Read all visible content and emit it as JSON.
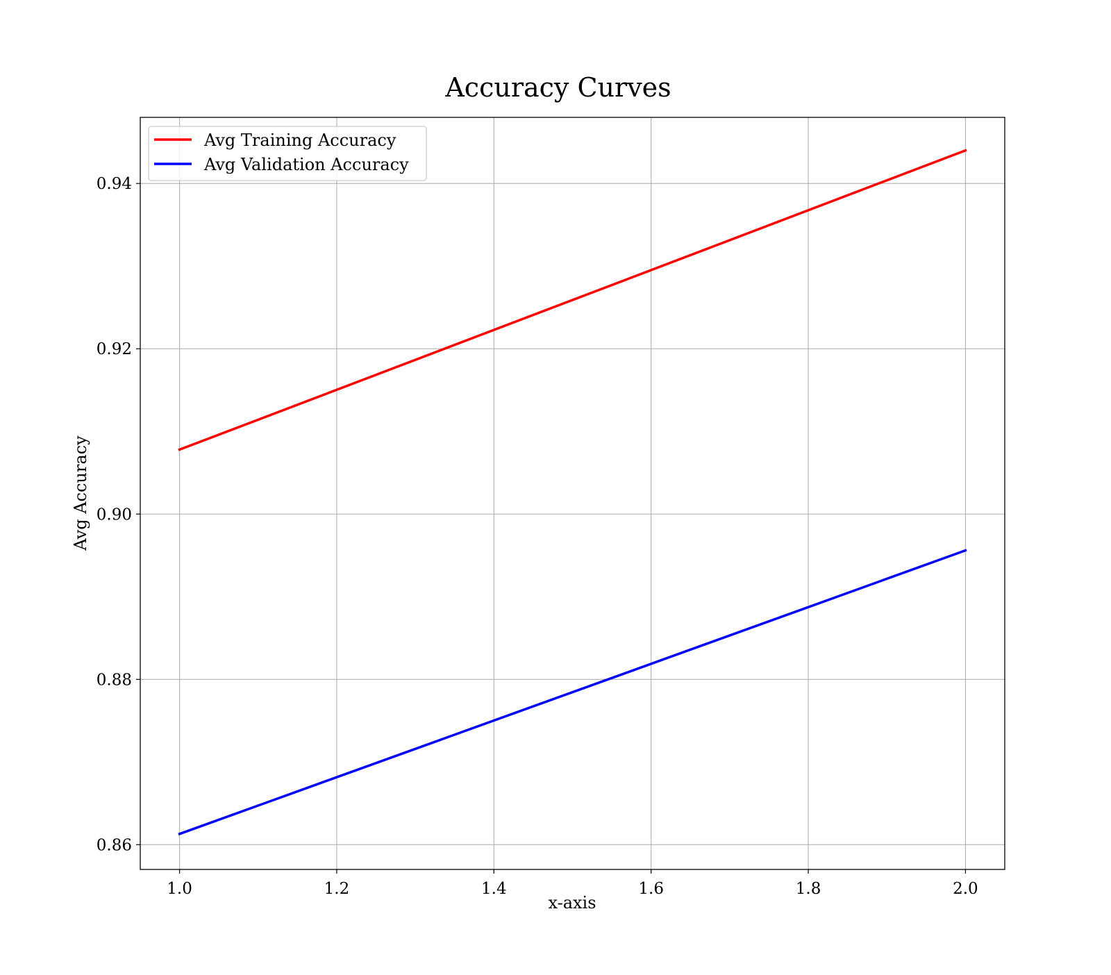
{
  "chart_data": {
    "type": "line",
    "title": "Accuracy Curves",
    "xlabel": "x-axis",
    "ylabel": "Avg Accuracy",
    "xlim": [
      0.95,
      2.05
    ],
    "ylim": [
      0.857,
      0.948
    ],
    "xticks": [
      1.0,
      1.2,
      1.4,
      1.6,
      1.8,
      2.0
    ],
    "xtick_labels": [
      "1.0",
      "1.2",
      "1.4",
      "1.6",
      "1.8",
      "2.0"
    ],
    "yticks": [
      0.86,
      0.88,
      0.9,
      0.92,
      0.94
    ],
    "ytick_labels": [
      "0.86",
      "0.88",
      "0.90",
      "0.92",
      "0.94"
    ],
    "grid": true,
    "legend_position": "top-left",
    "series": [
      {
        "name": "Avg Training Accuracy",
        "color": "#ff0000",
        "x": [
          1.0,
          2.0
        ],
        "y": [
          0.9078,
          0.944
        ]
      },
      {
        "name": "Avg Validation Accuracy",
        "color": "#0000ff",
        "x": [
          1.0,
          2.0
        ],
        "y": [
          0.8613,
          0.8956
        ]
      }
    ]
  }
}
